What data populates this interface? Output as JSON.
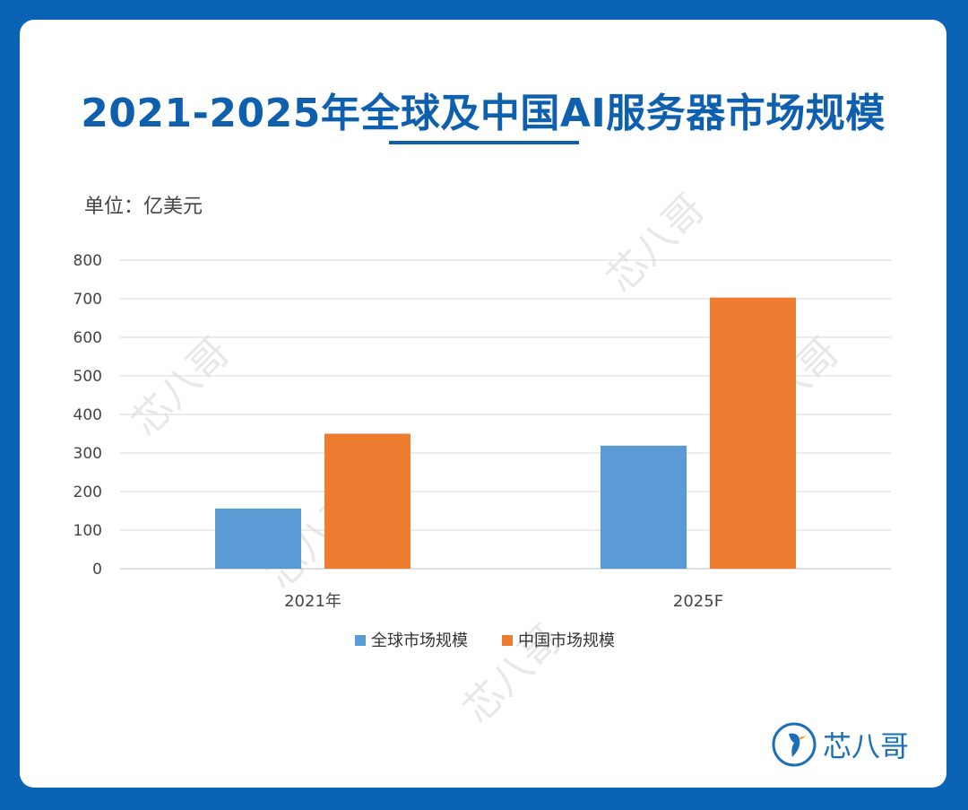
{
  "title": "2021-2025年全球及中国AI服务器市场规模",
  "unit": "单位：亿美元",
  "logo_text": "芯八哥",
  "watermark_text": "芯八哥",
  "colors": {
    "background": "#0b63b6",
    "title": "#0e5fae",
    "series1": "#5b9bd5",
    "series2": "#ed7d31"
  },
  "chart_data": {
    "type": "bar",
    "categories": [
      "2021年",
      "2025F"
    ],
    "series": [
      {
        "name": "全球市场规模",
        "values": [
          156,
          319
        ]
      },
      {
        "name": "中国市场规模",
        "values": [
          350,
          703
        ]
      }
    ],
    "title": "2021-2025年全球及中国AI服务器市场规模",
    "ylabel": "",
    "ylim": [
      0,
      800
    ],
    "yticks": [
      0,
      100,
      200,
      300,
      400,
      500,
      600,
      700,
      800
    ],
    "grid": true,
    "legend": "bottom"
  }
}
